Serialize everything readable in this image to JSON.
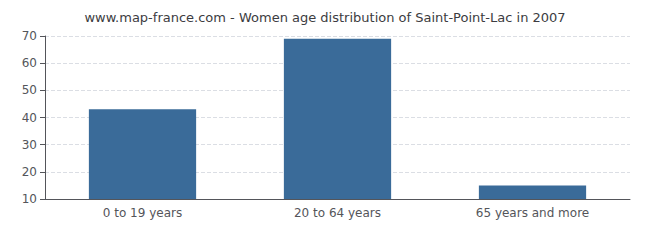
{
  "chart_data": {
    "type": "bar",
    "title": "www.map-france.com - Women age distribution of Saint-Point-Lac in 2007",
    "categories": [
      "0 to 19 years",
      "20 to 64 years",
      "65 years and more"
    ],
    "values": [
      43,
      69,
      15
    ],
    "color": "#3a6b99",
    "ylim": [
      10,
      70
    ],
    "yticks": [
      10,
      20,
      30,
      40,
      50,
      60,
      70
    ],
    "grid": true
  }
}
